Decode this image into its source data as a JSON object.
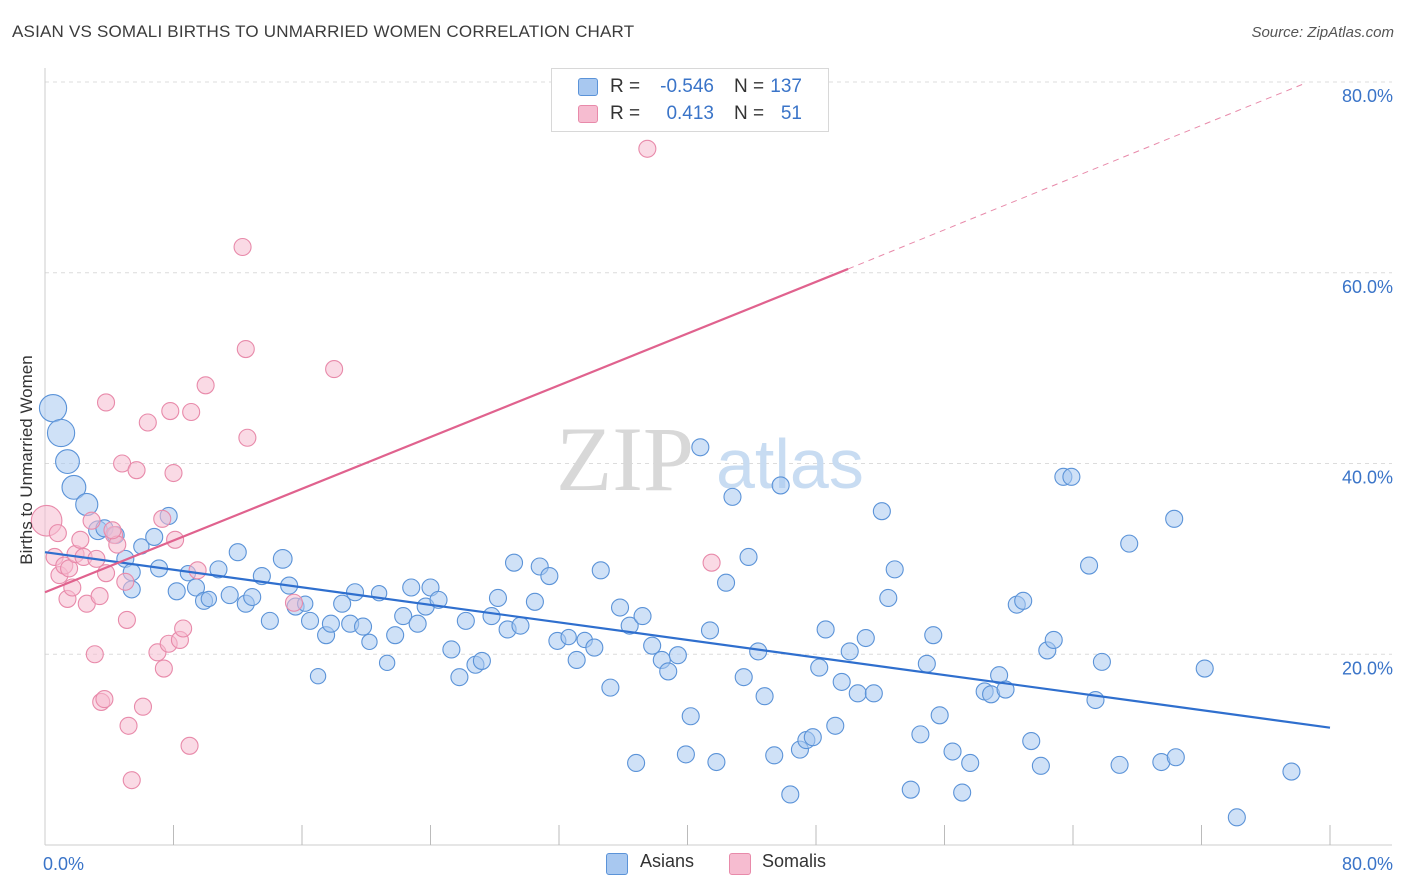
{
  "title": "ASIAN VS SOMALI BIRTHS TO UNMARRIED WOMEN CORRELATION CHART",
  "source": "Source: ZipAtlas.com",
  "watermark": {
    "zip": "ZIP",
    "atlas": "atlas"
  },
  "legend_top": {
    "asian": {
      "r_label": "R =",
      "r_value": "-0.546",
      "n_label": "N =",
      "n_value": "137"
    },
    "somali": {
      "r_label": "R =",
      "r_value": "0.413",
      "n_label": "N =",
      "n_value": "51"
    }
  },
  "legend_bottom": {
    "asian": "Asians",
    "somali": "Somalis"
  },
  "colors": {
    "asian_fill": "#a8c8f0",
    "asian_stroke": "#5b93d8",
    "asian_line": "#2f6fce",
    "somali_fill": "#f6bcd0",
    "somali_stroke": "#e88aaa",
    "somali_line": "#e0628e",
    "tick_label": "#3a74c8",
    "grid": "#dcdcdc"
  },
  "chart_data": {
    "type": "scatter",
    "title": "ASIAN VS SOMALI BIRTHS TO UNMARRIED WOMEN CORRELATION CHART",
    "ylabel": "Births to Unmarried Women",
    "xlabel": "",
    "xlim": [
      0,
      80
    ],
    "ylim": [
      0,
      80
    ],
    "x_tick_labels": [
      "0.0%",
      "80.0%"
    ],
    "y_tick_labels": [
      "20.0%",
      "40.0%",
      "60.0%",
      "80.0%"
    ],
    "y_ticks": [
      20,
      40,
      60,
      80
    ],
    "grid": "horizontal dashed",
    "legend": "top-center",
    "series": [
      {
        "name": "Asians",
        "trend": {
          "x0": 0,
          "y0": 30.7,
          "x1": 80,
          "y1": 12.3
        },
        "points": [
          [
            0.5,
            45.8,
            1.6
          ],
          [
            1.0,
            43.2,
            1.6
          ],
          [
            1.4,
            40.2,
            1.4
          ],
          [
            1.8,
            37.5,
            1.4
          ],
          [
            2.6,
            35.7,
            1.3
          ],
          [
            3.3,
            33.0,
            1.1
          ],
          [
            3.7,
            33.2,
            1.0
          ],
          [
            4.4,
            32.5,
            1.0
          ],
          [
            5.0,
            30.0,
            1.0
          ],
          [
            5.4,
            28.6,
            1.0
          ],
          [
            5.4,
            26.8,
            1.0
          ],
          [
            6.0,
            31.3,
            0.9
          ],
          [
            6.8,
            32.3,
            1.0
          ],
          [
            7.1,
            29.0,
            1.0
          ],
          [
            7.7,
            34.5,
            1.0
          ],
          [
            8.2,
            26.6,
            1.0
          ],
          [
            8.9,
            28.5,
            0.9
          ],
          [
            9.4,
            27.0,
            1.0
          ],
          [
            9.9,
            25.6,
            1.0
          ],
          [
            10.2,
            25.8,
            0.9
          ],
          [
            10.8,
            28.9,
            1.0
          ],
          [
            11.5,
            26.2,
            1.0
          ],
          [
            12.0,
            30.7,
            1.0
          ],
          [
            12.5,
            25.3,
            1.0
          ],
          [
            12.9,
            26.0,
            1.0
          ],
          [
            13.5,
            28.2,
            1.0
          ],
          [
            14.0,
            23.5,
            1.0
          ],
          [
            14.8,
            30.0,
            1.1
          ],
          [
            15.2,
            27.2,
            1.0
          ],
          [
            15.6,
            25.0,
            1.0
          ],
          [
            16.2,
            25.3,
            0.9
          ],
          [
            16.5,
            23.5,
            1.0
          ],
          [
            17.0,
            17.7,
            0.9
          ],
          [
            17.5,
            22.0,
            1.0
          ],
          [
            17.8,
            23.2,
            1.0
          ],
          [
            18.5,
            25.3,
            1.0
          ],
          [
            19.0,
            23.2,
            1.0
          ],
          [
            19.3,
            26.5,
            1.0
          ],
          [
            19.8,
            22.9,
            1.0
          ],
          [
            20.2,
            21.3,
            0.9
          ],
          [
            20.8,
            26.4,
            0.9
          ],
          [
            21.3,
            19.1,
            0.9
          ],
          [
            21.8,
            22.0,
            1.0
          ],
          [
            22.3,
            24.0,
            1.0
          ],
          [
            22.8,
            27.0,
            1.0
          ],
          [
            23.2,
            23.2,
            1.0
          ],
          [
            23.7,
            25.0,
            1.0
          ],
          [
            24.0,
            27.0,
            1.0
          ],
          [
            24.5,
            25.7,
            1.0
          ],
          [
            25.3,
            20.5,
            1.0
          ],
          [
            25.8,
            17.6,
            1.0
          ],
          [
            26.2,
            23.5,
            1.0
          ],
          [
            26.8,
            18.9,
            1.0
          ],
          [
            27.2,
            19.3,
            1.0
          ],
          [
            27.8,
            24.0,
            1.0
          ],
          [
            28.2,
            25.9,
            1.0
          ],
          [
            28.8,
            22.6,
            1.0
          ],
          [
            29.2,
            29.6,
            1.0
          ],
          [
            29.6,
            23.0,
            1.0
          ],
          [
            30.5,
            25.5,
            1.0
          ],
          [
            30.8,
            29.2,
            1.0
          ],
          [
            31.4,
            28.2,
            1.0
          ],
          [
            31.9,
            21.4,
            1.0
          ],
          [
            32.6,
            21.8,
            0.9
          ],
          [
            33.1,
            19.4,
            1.0
          ],
          [
            33.6,
            21.5,
            0.9
          ],
          [
            34.2,
            20.7,
            1.0
          ],
          [
            34.6,
            28.8,
            1.0
          ],
          [
            35.2,
            16.5,
            1.0
          ],
          [
            35.8,
            24.9,
            1.0
          ],
          [
            36.4,
            23.0,
            1.0
          ],
          [
            36.8,
            8.6,
            1.0
          ],
          [
            37.2,
            24.0,
            1.0
          ],
          [
            37.8,
            20.9,
            1.0
          ],
          [
            38.4,
            19.4,
            1.0
          ],
          [
            38.8,
            18.2,
            1.0
          ],
          [
            39.4,
            19.9,
            1.0
          ],
          [
            39.9,
            9.5,
            1.0
          ],
          [
            40.2,
            13.5,
            1.0
          ],
          [
            40.8,
            41.7,
            1.0
          ],
          [
            41.4,
            22.5,
            1.0
          ],
          [
            41.8,
            8.7,
            1.0
          ],
          [
            42.4,
            27.5,
            1.0
          ],
          [
            42.8,
            36.5,
            1.0
          ],
          [
            43.5,
            17.6,
            1.0
          ],
          [
            43.8,
            30.2,
            1.0
          ],
          [
            44.4,
            20.3,
            1.0
          ],
          [
            44.8,
            15.6,
            1.0
          ],
          [
            45.4,
            9.4,
            1.0
          ],
          [
            45.8,
            37.7,
            1.0
          ],
          [
            46.4,
            5.3,
            1.0
          ],
          [
            47.0,
            10.0,
            1.0
          ],
          [
            47.4,
            11.0,
            1.0
          ],
          [
            47.8,
            11.3,
            1.0
          ],
          [
            48.2,
            18.6,
            1.0
          ],
          [
            48.6,
            22.6,
            1.0
          ],
          [
            49.2,
            12.5,
            1.0
          ],
          [
            49.6,
            17.1,
            1.0
          ],
          [
            50.1,
            20.3,
            1.0
          ],
          [
            50.6,
            15.9,
            1.0
          ],
          [
            51.1,
            21.7,
            1.0
          ],
          [
            51.6,
            15.9,
            1.0
          ],
          [
            52.1,
            35.0,
            1.0
          ],
          [
            52.5,
            25.9,
            1.0
          ],
          [
            52.9,
            28.9,
            1.0
          ],
          [
            53.9,
            5.8,
            1.0
          ],
          [
            54.5,
            11.6,
            1.0
          ],
          [
            54.9,
            19.0,
            1.0
          ],
          [
            55.3,
            22.0,
            1.0
          ],
          [
            55.7,
            13.6,
            1.0
          ],
          [
            56.5,
            9.8,
            1.0
          ],
          [
            57.1,
            5.5,
            1.0
          ],
          [
            57.6,
            8.6,
            1.0
          ],
          [
            58.5,
            16.1,
            1.0
          ],
          [
            58.9,
            15.8,
            1.0
          ],
          [
            59.4,
            17.8,
            1.0
          ],
          [
            59.8,
            16.3,
            1.0
          ],
          [
            60.5,
            25.2,
            1.0
          ],
          [
            60.9,
            25.6,
            1.0
          ],
          [
            61.4,
            10.9,
            1.0
          ],
          [
            62.0,
            8.3,
            1.0
          ],
          [
            62.4,
            20.4,
            1.0
          ],
          [
            62.8,
            21.5,
            1.0
          ],
          [
            63.4,
            38.6,
            1.0
          ],
          [
            63.9,
            38.6,
            1.0
          ],
          [
            65.0,
            29.3,
            1.0
          ],
          [
            65.4,
            15.2,
            1.0
          ],
          [
            65.8,
            19.2,
            1.0
          ],
          [
            66.9,
            8.4,
            1.0
          ],
          [
            67.5,
            31.6,
            1.0
          ],
          [
            69.5,
            8.7,
            1.0
          ],
          [
            70.3,
            34.2,
            1.0
          ],
          [
            70.4,
            9.2,
            1.0
          ],
          [
            72.2,
            18.5,
            1.0
          ],
          [
            74.2,
            2.9,
            1.0
          ],
          [
            77.6,
            7.7,
            1.0
          ]
        ]
      },
      {
        "name": "Somalis",
        "trend": {
          "x0": 0,
          "y0": 26.5,
          "x1": 50,
          "y1": 60.4,
          "dash_to_x": 78.5,
          "dash_to_y": 79.9
        },
        "points": [
          [
            0.1,
            34.0,
            1.8
          ],
          [
            0.6,
            30.2,
            1.0
          ],
          [
            0.8,
            32.7,
            1.0
          ],
          [
            0.9,
            28.3,
            1.0
          ],
          [
            1.2,
            29.3,
            1.0
          ],
          [
            1.4,
            25.8,
            1.0
          ],
          [
            1.5,
            29.0,
            1.0
          ],
          [
            1.7,
            27.0,
            1.0
          ],
          [
            1.9,
            30.5,
            1.0
          ],
          [
            2.2,
            32.0,
            1.0
          ],
          [
            2.4,
            30.2,
            1.0
          ],
          [
            2.6,
            25.3,
            1.0
          ],
          [
            2.9,
            34.0,
            1.0
          ],
          [
            3.2,
            30.0,
            1.0
          ],
          [
            3.1,
            20.0,
            1.0
          ],
          [
            3.4,
            26.1,
            1.0
          ],
          [
            3.5,
            15.0,
            1.0
          ],
          [
            3.7,
            15.3,
            1.0
          ],
          [
            3.8,
            28.5,
            1.0
          ],
          [
            3.8,
            46.4,
            1.0
          ],
          [
            4.3,
            32.5,
            1.0
          ],
          [
            4.5,
            31.5,
            1.0
          ],
          [
            4.8,
            40.0,
            1.0
          ],
          [
            5.0,
            27.6,
            1.0
          ],
          [
            5.1,
            23.6,
            1.0
          ],
          [
            5.2,
            12.5,
            1.0
          ],
          [
            5.4,
            6.8,
            1.0
          ],
          [
            5.7,
            39.3,
            1.0
          ],
          [
            6.1,
            14.5,
            1.0
          ],
          [
            6.4,
            44.3,
            1.0
          ],
          [
            7.0,
            20.2,
            1.0
          ],
          [
            7.3,
            34.2,
            1.0
          ],
          [
            7.4,
            18.5,
            1.0
          ],
          [
            7.7,
            21.1,
            1.0
          ],
          [
            7.8,
            45.5,
            1.0
          ],
          [
            8.0,
            39.0,
            1.0
          ],
          [
            8.1,
            32.0,
            1.0
          ],
          [
            8.4,
            21.5,
            1.0
          ],
          [
            8.6,
            22.7,
            1.0
          ],
          [
            9.0,
            10.4,
            1.0
          ],
          [
            9.1,
            45.4,
            1.0
          ],
          [
            9.5,
            28.8,
            1.0
          ],
          [
            10.0,
            48.2,
            1.0
          ],
          [
            12.3,
            62.7,
            1.0
          ],
          [
            12.5,
            52.0,
            1.0
          ],
          [
            12.6,
            42.7,
            1.0
          ],
          [
            15.5,
            25.4,
            1.0
          ],
          [
            18.0,
            49.9,
            1.0
          ],
          [
            37.5,
            73.0,
            1.0
          ],
          [
            41.5,
            29.6,
            1.0
          ],
          [
            4.2,
            33.0,
            1.0
          ]
        ]
      }
    ]
  }
}
